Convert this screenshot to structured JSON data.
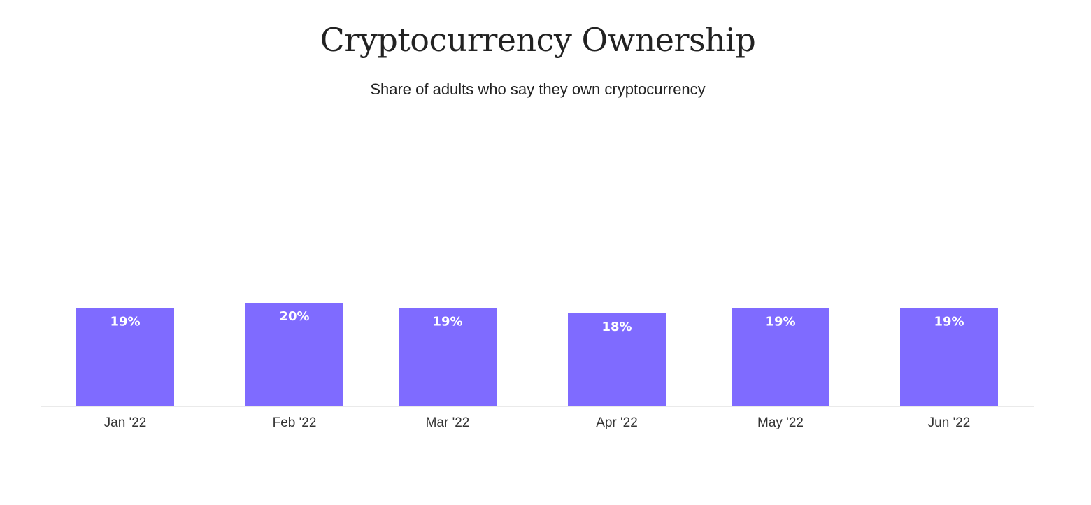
{
  "chart_data": {
    "type": "bar",
    "title": "Cryptocurrency Ownership",
    "subtitle": "Share of adults who say they own cryptocurrency",
    "categories": [
      "Jan '22",
      "Feb '22",
      "Mar '22",
      "Apr '22",
      "May '22",
      "Jun '22"
    ],
    "values": [
      19,
      20,
      19,
      18,
      19,
      19
    ],
    "value_labels": [
      "19%",
      "20%",
      "19%",
      "18%",
      "19%",
      "19%"
    ],
    "unit": "%",
    "ylim": [
      0,
      20
    ],
    "xlabel": "",
    "ylabel": "",
    "grid": false,
    "legend": "none",
    "colors": {
      "bar": "#7f6bff",
      "label": "#ffffff",
      "text": "#222222"
    }
  }
}
